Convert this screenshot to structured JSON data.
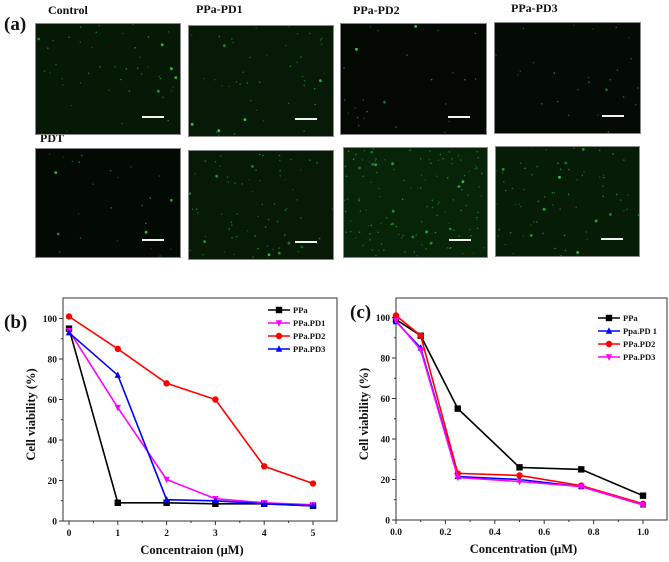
{
  "figure": {
    "panel_a": {
      "label": "(a)",
      "row1": [
        {
          "title": "Control",
          "bg": "#061806",
          "dots": "sparse"
        },
        {
          "title": "PPa-PD1",
          "bg": "#071a07",
          "dots": "sparse"
        },
        {
          "title": "PPa-PD2",
          "bg": "#030803",
          "dots": "very-sparse"
        },
        {
          "title": "PPa-PD3",
          "bg": "#040a04",
          "dots": "very-sparse"
        }
      ],
      "row2": [
        {
          "title": "PDT",
          "bg": "#030a03",
          "dots": "very-sparse"
        },
        {
          "title": "",
          "bg": "#061a06",
          "dots": "moderate"
        },
        {
          "title": "",
          "bg": "#082408",
          "dots": "dense"
        },
        {
          "title": "",
          "bg": "#061c06",
          "dots": "moderate"
        }
      ]
    },
    "panel_b": {
      "label": "(b)"
    },
    "panel_c": {
      "label": "(c)"
    }
  },
  "chart_data": [
    {
      "type": "line",
      "panel": "(b)",
      "title": "",
      "xlabel": "Concentraion (μM)",
      "ylabel": "Cell viability (%)",
      "x": [
        0,
        1,
        2,
        3,
        4,
        5
      ],
      "xticks": [
        "0",
        "1",
        "2",
        "3",
        "4",
        "5"
      ],
      "yticks": [
        "0",
        "20",
        "40",
        "60",
        "80",
        "100"
      ],
      "xlim": [
        -0.05,
        5.5
      ],
      "ylim": [
        0,
        110
      ],
      "grid": false,
      "legend_position": "upper right",
      "series": [
        {
          "name": "PPa",
          "color": "#000000",
          "marker": "square",
          "values": [
            95,
            9,
            9,
            8.5,
            8.5,
            7.5
          ]
        },
        {
          "name": "PPa.PD1",
          "color": "#ff00ff",
          "marker": "triangle-down",
          "values": [
            94,
            56,
            20.5,
            11,
            9,
            8
          ]
        },
        {
          "name": "PPa.PD2",
          "color": "#ff0000",
          "marker": "circle",
          "values": [
            101,
            85,
            68,
            60,
            27,
            18.5
          ]
        },
        {
          "name": "PPa.PD3",
          "color": "#0000ff",
          "marker": "triangle-up",
          "values": [
            93,
            72,
            10.5,
            10,
            8.5,
            7.5
          ]
        }
      ]
    },
    {
      "type": "line",
      "panel": "(c)",
      "title": "",
      "xlabel": "Concentration (μM)",
      "ylabel": "Cell viability (%)",
      "x": [
        0,
        0.1,
        0.25,
        0.5,
        0.75,
        1.0
      ],
      "xticks": [
        "0.0",
        "0.2",
        "0.4",
        "0.6",
        "0.8",
        "1.0"
      ],
      "yticks": [
        "0",
        "20",
        "40",
        "60",
        "80",
        "100"
      ],
      "xlim": [
        0,
        1.1
      ],
      "ylim": [
        0,
        110
      ],
      "grid": false,
      "legend_position": "upper right",
      "series": [
        {
          "name": "PPa",
          "color": "#000000",
          "marker": "square",
          "values": [
            99,
            91,
            55,
            26,
            25,
            12
          ]
        },
        {
          "name": "Ppa.PD 1",
          "color": "#0000ff",
          "marker": "triangle-up",
          "values": [
            98,
            85,
            21.5,
            20,
            16.5,
            7.5
          ]
        },
        {
          "name": "PPa.PD2",
          "color": "#ff0000",
          "marker": "circle",
          "values": [
            101,
            91,
            23,
            22,
            17,
            8
          ]
        },
        {
          "name": "PPa.PD3",
          "color": "#ff00ff",
          "marker": "triangle-down",
          "values": [
            98.5,
            84,
            21,
            19,
            16.5,
            7.5
          ]
        }
      ]
    }
  ]
}
